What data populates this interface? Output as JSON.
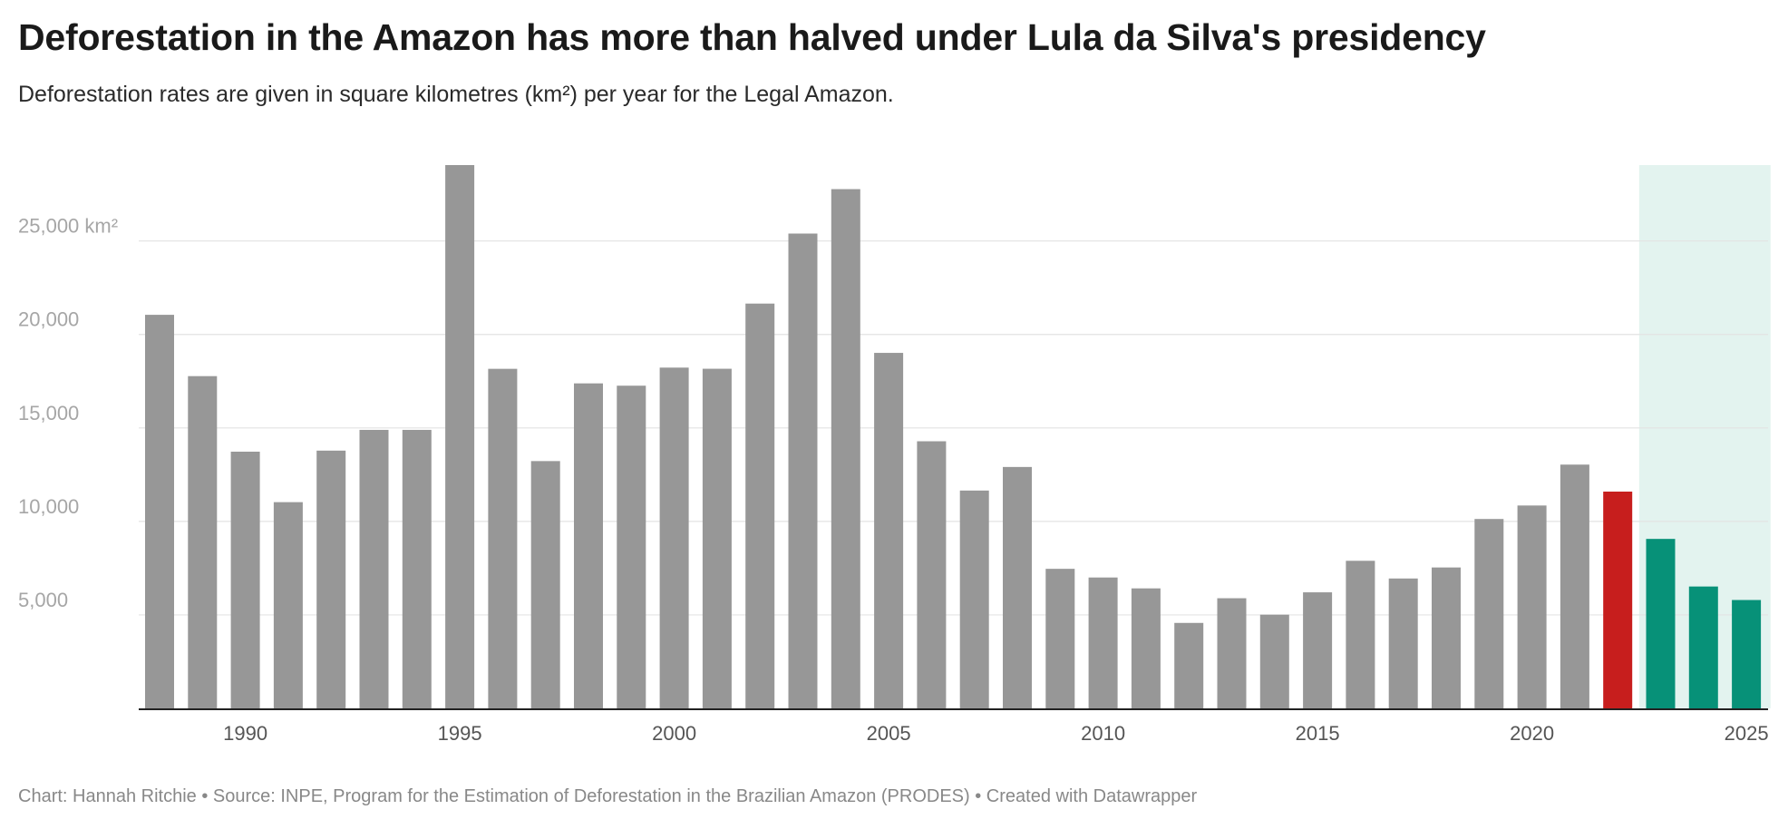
{
  "title": "Deforestation in the Amazon has more than halved under Lula da Silva's presidency",
  "subtitle": "Deforestation rates are given in square kilometres (km²) per year for the Legal Amazon.",
  "footer": "Chart: Hannah Ritchie • Source: INPE, Program for the Estimation of Deforestation in the Brazilian Amazon (PRODES) • Created with Datawrapper",
  "colors": {
    "default_bar": "#979797",
    "highlight_bar": "#c71e1d",
    "lula_bar": "#079178",
    "lula_band": "#e3f3ef",
    "gridline": "#e3e3e3",
    "baseline": "#222222"
  },
  "chart_data": {
    "type": "bar",
    "title": "Deforestation in the Amazon has more than halved under Lula da Silva's presidency",
    "subtitle": "Deforestation rates are given in square kilometres (km²) per year for the Legal Amazon.",
    "xlabel": "",
    "ylabel": "",
    "unit": "km²",
    "x": [
      1988,
      1989,
      1990,
      1991,
      1992,
      1993,
      1994,
      1995,
      1996,
      1997,
      1998,
      1999,
      2000,
      2001,
      2002,
      2003,
      2004,
      2005,
      2006,
      2007,
      2008,
      2009,
      2010,
      2011,
      2012,
      2013,
      2014,
      2015,
      2016,
      2017,
      2018,
      2019,
      2020,
      2021,
      2022,
      2023,
      2024,
      2025
    ],
    "values": [
      21050,
      17770,
      13730,
      11030,
      13786,
      14896,
      14896,
      29059,
      18161,
      13227,
      17383,
      17259,
      18226,
      18165,
      21651,
      25396,
      27772,
      19014,
      14286,
      11651,
      12911,
      7464,
      7000,
      6418,
      4571,
      5891,
      5012,
      6207,
      7893,
      6947,
      7536,
      10129,
      10851,
      13038,
      11594,
      9064,
      6518,
      5796
    ],
    "bar_groups": {
      "highlight": [
        2022
      ],
      "lula_period": [
        2023,
        2024,
        2025
      ]
    },
    "shaded_region": {
      "from": 2023,
      "to": 2025
    },
    "ylim": [
      0,
      29059
    ],
    "yticks": [
      5000,
      10000,
      15000,
      20000,
      25000
    ],
    "ytick_labels": [
      "5,000",
      "10,000",
      "15,000",
      "20,000",
      "25,000 km²"
    ],
    "xticks": [
      1990,
      1995,
      2000,
      2005,
      2010,
      2015,
      2020,
      2025
    ],
    "xtick_labels": [
      "1990",
      "1995",
      "2000",
      "2005",
      "2010",
      "2015",
      "2020",
      "2025"
    ],
    "grid": true,
    "legend": "none"
  }
}
